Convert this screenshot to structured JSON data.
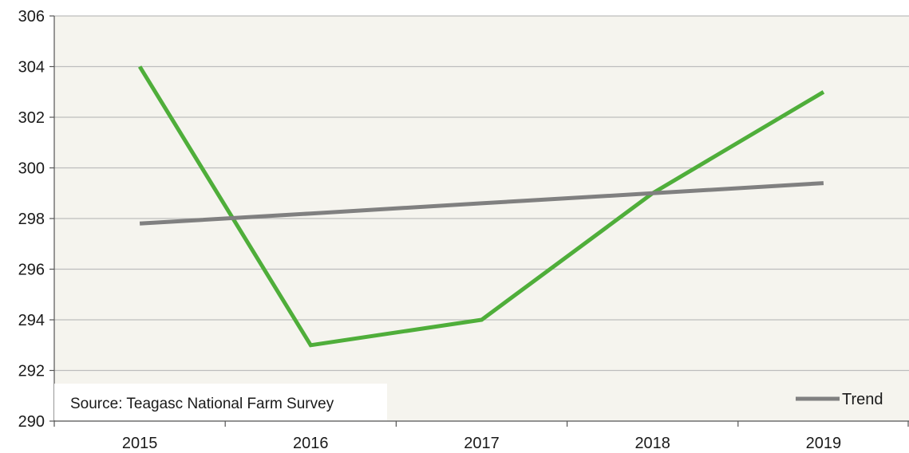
{
  "chart_data": {
    "type": "line",
    "categories": [
      "2015",
      "2016",
      "2017",
      "2018",
      "2019"
    ],
    "series": [
      {
        "name": "",
        "color": "#4fae3a",
        "values": [
          304,
          293,
          294,
          299,
          303
        ]
      },
      {
        "name": "Trend",
        "color": "#808080",
        "values": [
          297.8,
          298.2,
          298.6,
          299.0,
          299.4
        ]
      }
    ],
    "ylim": [
      290,
      306
    ],
    "yticks": [
      290,
      292,
      294,
      296,
      298,
      300,
      302,
      304,
      306
    ],
    "title": "",
    "xlabel": "",
    "ylabel": "",
    "grid": true,
    "legend": "bottom-right",
    "annotation": "Source: Teagasc National Farm Survey",
    "plot_background": "#f5f4ee"
  }
}
